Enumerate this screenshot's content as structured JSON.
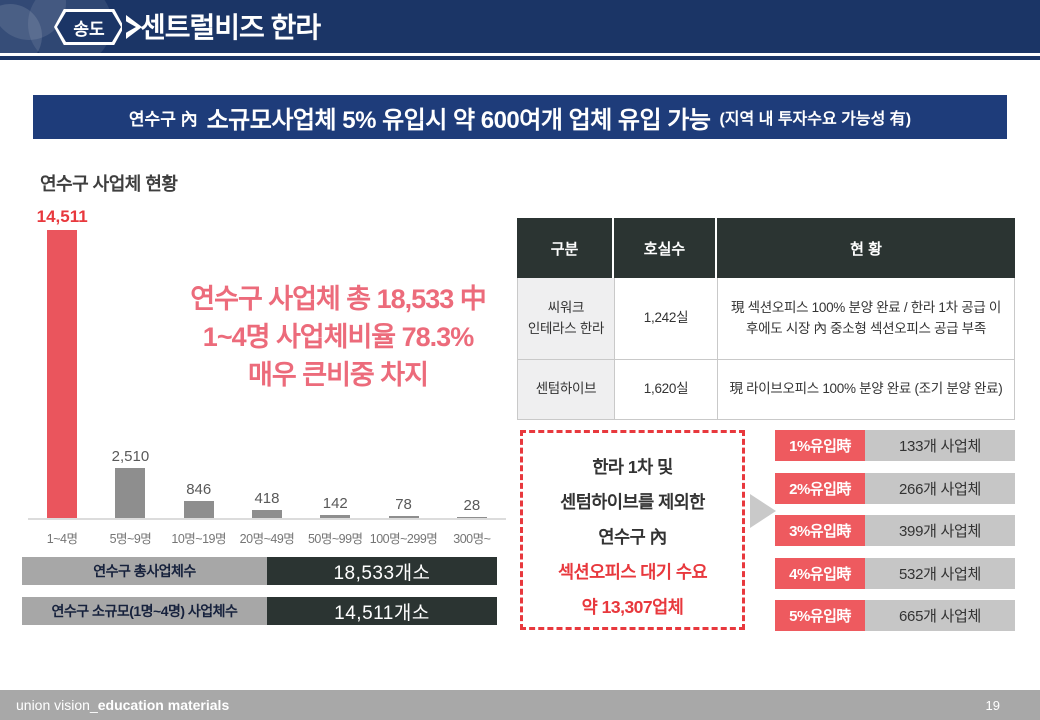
{
  "header": {
    "badge": "송도",
    "title": "센트럴비즈 한라"
  },
  "banner": {
    "prefix": "연수구 內",
    "main": "소규모사업체 5% 유입시 약 600여개 업체 유입 가능",
    "suffix": "(지역 내 투자수요 가능성 有)"
  },
  "chart_data": {
    "type": "bar",
    "title": "연수구 사업체 현황",
    "categories": [
      "1~4명",
      "5명~9명",
      "10명~19명",
      "20명~49명",
      "50명~99명",
      "100명~299명",
      "300명~"
    ],
    "values": [
      14511,
      2510,
      846,
      418,
      142,
      78,
      28
    ],
    "value_labels": [
      "14,511",
      "2,510",
      "846",
      "418",
      "142",
      "78",
      "28"
    ],
    "highlight_index": 0,
    "bar_color": "#8e8e8e",
    "highlight_color": "#ea555d",
    "xlabel": "",
    "ylabel": "",
    "ylim": [
      0,
      15000
    ],
    "grid": false,
    "legend": false,
    "annotation_lines": [
      "연수구 사업체 총 18,533 中",
      "1~4명 사업체비율 78.3%",
      "매우 큰비중 차지"
    ]
  },
  "summary": [
    {
      "label": "연수구 총사업체수",
      "value": "18,533개소"
    },
    {
      "label": "연수구 소규모(1명~4명) 사업체수",
      "value": "14,511개소"
    }
  ],
  "table": {
    "headers": [
      "구분",
      "호실수",
      "현 황"
    ],
    "rows": [
      {
        "name": "씨워크\n인테라스 한라",
        "units": "1,242실",
        "status": "現 섹션오피스 100% 분양 완료 / 한라 1차 공급 이\n후에도 시장 內 중소형 섹션오피스 공급 부족"
      },
      {
        "name": "센텀하이브",
        "units": "1,620실",
        "status": "現 라이브오피스 100% 분양 완료 (조기 분양 완료)"
      }
    ]
  },
  "demand_box": {
    "lines": [
      {
        "text": "한라 1차 및",
        "tone": "dark"
      },
      {
        "text": "센텀하이브를 제외한",
        "tone": "dark"
      },
      {
        "text": "연수구 內",
        "tone": "dark"
      },
      {
        "text": "섹션오피스 대기 수요",
        "tone": "red"
      },
      {
        "text": "약 13,307업체",
        "tone": "red"
      }
    ]
  },
  "inflow": [
    {
      "label": "1%유입時",
      "value": "133개 사업체"
    },
    {
      "label": "2%유입時",
      "value": "266개 사업체"
    },
    {
      "label": "3%유입時",
      "value": "399개 사업체"
    },
    {
      "label": "4%유입時",
      "value": "532개 사업체"
    },
    {
      "label": "5%유입時",
      "value": "665개 사업체"
    }
  ],
  "footer": {
    "left_regular": "union vision_",
    "left_bold": "education materials",
    "page": "19"
  },
  "colors": {
    "navy": "#1b3566",
    "banner_blue": "#1e3c7a",
    "accent_red": "#e8383d",
    "bar_red": "#ea555d",
    "dark_cell": "#2b3432",
    "footer_gray": "#a8a8a8"
  }
}
